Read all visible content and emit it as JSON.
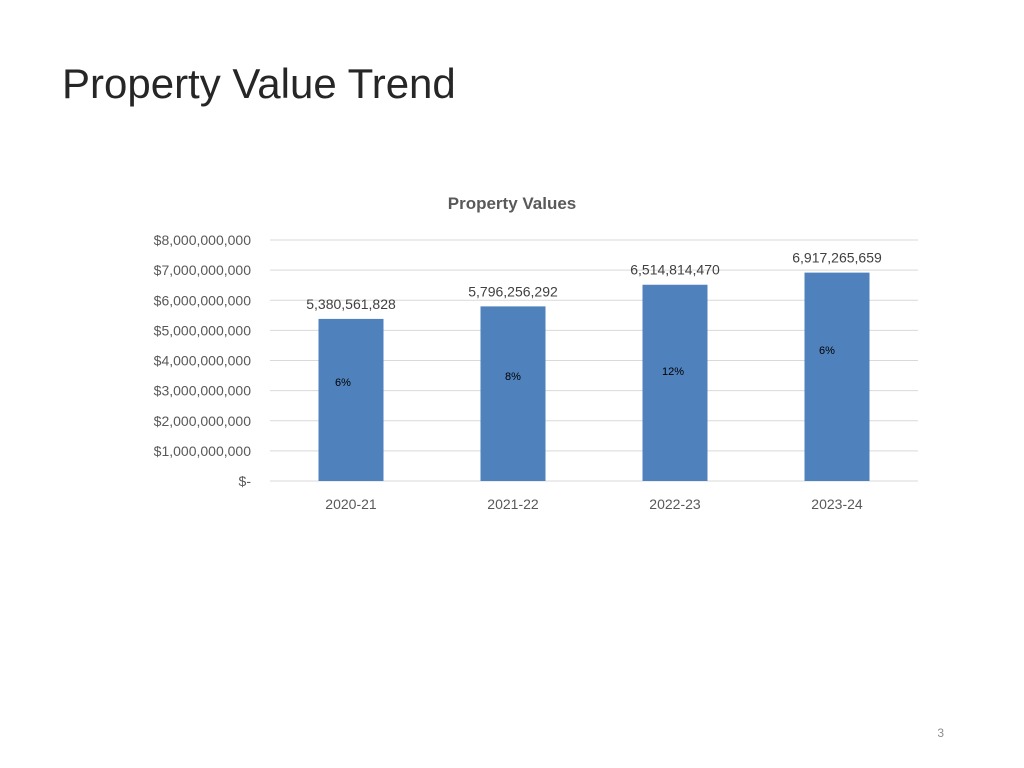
{
  "slide": {
    "title": "Property Value Trend",
    "page_number": "3"
  },
  "colors": {
    "bar": "#4f81bd",
    "grid": "#d9d9d9"
  },
  "chart_data": {
    "type": "bar",
    "title": "Property Values",
    "xlabel": "",
    "ylabel": "",
    "categories": [
      "2020-21",
      "2021-22",
      "2022-23",
      "2023-24"
    ],
    "values": [
      5380561828,
      5796256292,
      6514814470,
      6917265659
    ],
    "value_labels": [
      "5,380,561,828",
      "5,796,256,292",
      "6,514,814,470",
      "6,917,265,659"
    ],
    "growth_labels": [
      "6%",
      "8%",
      "12%",
      "6%"
    ],
    "ylim": [
      0,
      8000000000
    ],
    "yticks": [
      0,
      1000000000,
      2000000000,
      3000000000,
      4000000000,
      5000000000,
      6000000000,
      7000000000,
      8000000000
    ],
    "ytick_labels": [
      "$-",
      "$1,000,000,000",
      "$2,000,000,000",
      "$3,000,000,000",
      "$4,000,000,000",
      "$5,000,000,000",
      "$6,000,000,000",
      "$7,000,000,000",
      "$8,000,000,000"
    ],
    "grid": true,
    "legend": "none"
  }
}
